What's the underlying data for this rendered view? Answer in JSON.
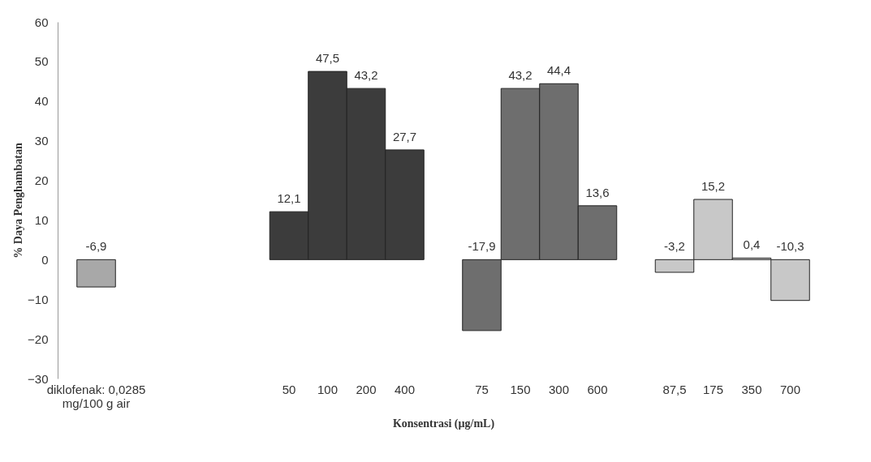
{
  "chart_data": {
    "type": "bar",
    "categories": [
      "diklofenak: 0,0285 mg/100 g air",
      null,
      null,
      null,
      null,
      "50",
      "100",
      "200",
      "400",
      null,
      "75",
      "150",
      "300",
      "600",
      null,
      "87,5",
      "175",
      "350",
      "700"
    ],
    "values": [
      -6.9,
      null,
      null,
      null,
      null,
      12.1,
      47.5,
      43.2,
      27.7,
      null,
      -17.9,
      43.2,
      44.4,
      13.6,
      null,
      -3.2,
      15.2,
      0.4,
      -10.3
    ],
    "value_labels": [
      "-6,9",
      null,
      null,
      null,
      null,
      "12,1",
      "47,5",
      "43,2",
      "27,7",
      null,
      "-17,9",
      "43,2",
      "44,4",
      "13,6",
      null,
      "-3,2",
      "15,2",
      "0,4",
      "-10,3"
    ],
    "colors": [
      "#a8a8a8",
      null,
      null,
      null,
      null,
      "#3c3c3c",
      "#3c3c3c",
      "#3c3c3c",
      "#3c3c3c",
      null,
      "#6e6e6e",
      "#6e6e6e",
      "#6e6e6e",
      "#6e6e6e",
      null,
      "#c8c8c8",
      "#c8c8c8",
      "#c8c8c8",
      "#c8c8c8"
    ],
    "xlabel": "Konsentrasi (µg/mL)",
    "ylabel": "% Daya Penghambatan",
    "ylim": [
      -30,
      60
    ],
    "yticks": [
      -30,
      -20,
      -10,
      0,
      10,
      20,
      30,
      40,
      50,
      60
    ],
    "grid": false
  }
}
